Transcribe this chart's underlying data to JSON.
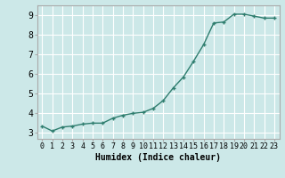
{
  "x": [
    0,
    1,
    2,
    3,
    4,
    5,
    6,
    7,
    8,
    9,
    10,
    11,
    12,
    13,
    14,
    15,
    16,
    17,
    18,
    19,
    20,
    21,
    22,
    23
  ],
  "y": [
    3.35,
    3.1,
    3.3,
    3.35,
    3.45,
    3.5,
    3.5,
    3.75,
    3.9,
    4.0,
    4.05,
    4.25,
    4.65,
    5.3,
    5.85,
    6.65,
    7.5,
    8.6,
    8.65,
    9.05,
    9.05,
    8.95,
    8.85,
    8.85
  ],
  "xlabel": "Humidex (Indice chaleur)",
  "line_color": "#2e7d6e",
  "bg_color": "#cce8e8",
  "grid_color": "#ffffff",
  "ylim": [
    2.7,
    9.5
  ],
  "xlim": [
    -0.5,
    23.5
  ],
  "yticks": [
    3,
    4,
    5,
    6,
    7,
    8,
    9
  ],
  "xticks": [
    0,
    1,
    2,
    3,
    4,
    5,
    6,
    7,
    8,
    9,
    10,
    11,
    12,
    13,
    14,
    15,
    16,
    17,
    18,
    19,
    20,
    21,
    22,
    23
  ],
  "markersize": 3,
  "linewidth": 1.0,
  "tick_fontsize": 6,
  "xlabel_fontsize": 7
}
